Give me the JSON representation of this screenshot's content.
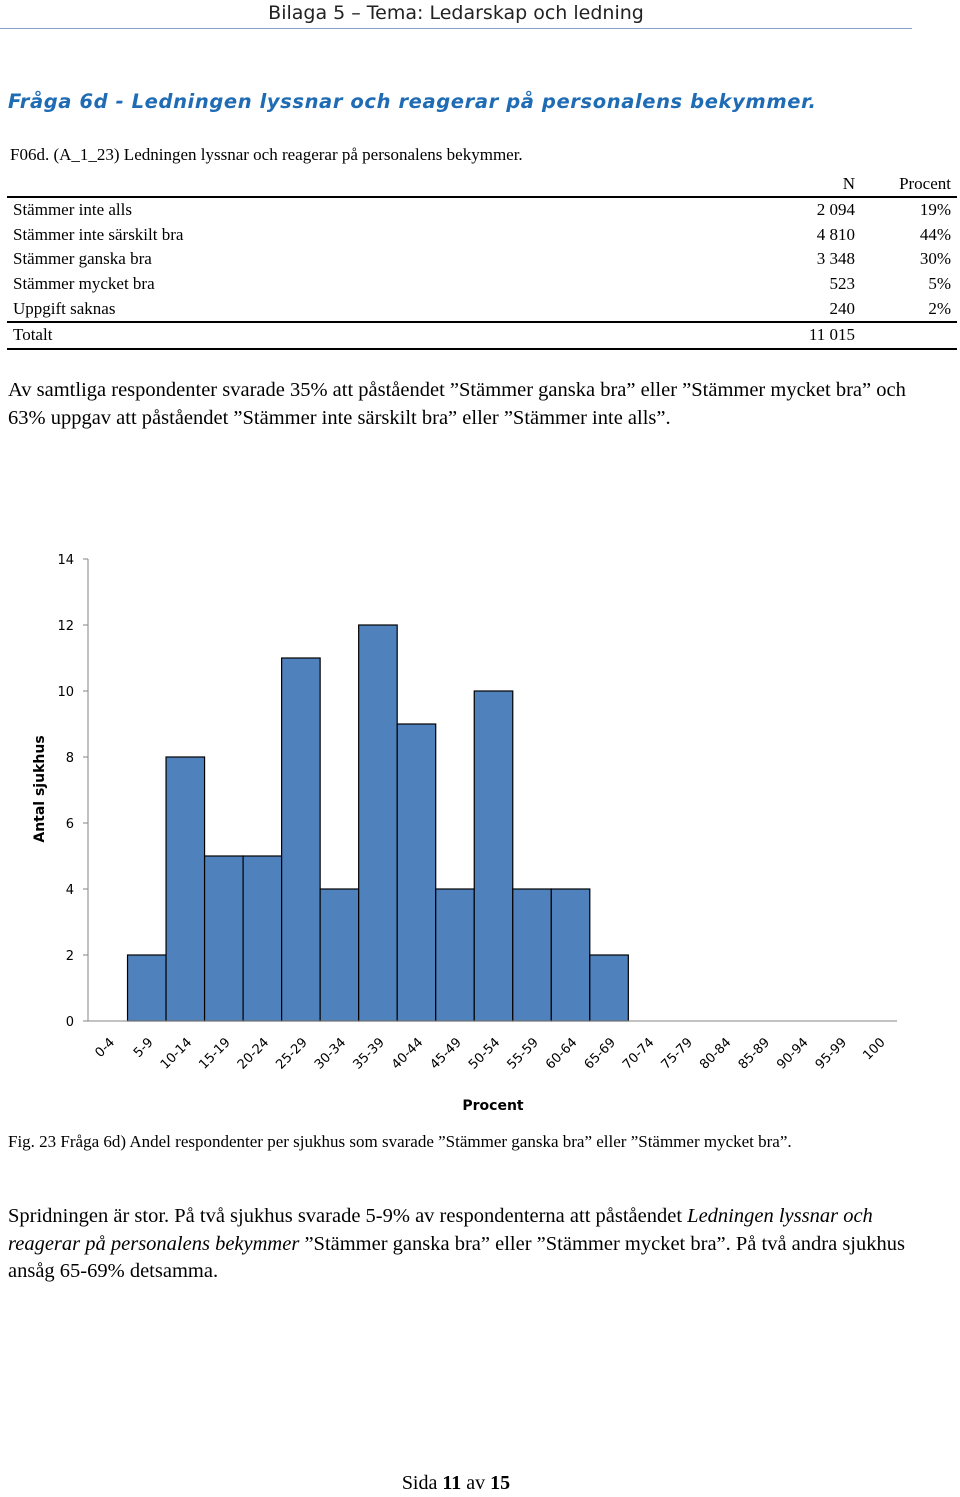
{
  "header": {
    "title": "Bilaga 5 – Tema: Ledarskap och ledning"
  },
  "section_heading": "Fråga 6d - Ledningen lyssnar och reagerar på personalens bekymmer.",
  "table": {
    "caption": "F06d. (A_1_23) Ledningen lyssnar och reagerar på personalens bekymmer.",
    "columns": [
      "",
      "N",
      "Procent"
    ],
    "rows": [
      {
        "label": "Stämmer inte alls",
        "n": "2 094",
        "percent": "19%"
      },
      {
        "label": "Stämmer inte särskilt bra",
        "n": "4 810",
        "percent": "44%"
      },
      {
        "label": "Stämmer ganska bra",
        "n": "3 348",
        "percent": "30%"
      },
      {
        "label": "Stämmer mycket bra",
        "n": "523",
        "percent": "5%"
      },
      {
        "label": "Uppgift saknas",
        "n": "240",
        "percent": "2%"
      }
    ],
    "total": {
      "label": "Totalt",
      "n": "11 015",
      "percent": ""
    }
  },
  "summary": "Av samtliga respondenter svarade 35% att påståendet ”Stämmer ganska bra” eller ”Stämmer mycket bra” och 63% uppgav att påståendet ”Stämmer inte särskilt bra” eller ”Stämmer inte alls”.",
  "chart_data": {
    "type": "bar",
    "title": "",
    "xlabel": "Procent",
    "ylabel": "Antal sjukhus",
    "ylim": [
      0,
      14
    ],
    "yticks": [
      0,
      2,
      4,
      6,
      8,
      10,
      12,
      14
    ],
    "categories": [
      "0-4",
      "5-9",
      "10-14",
      "15-19",
      "20-24",
      "25-29",
      "30-34",
      "35-39",
      "40-44",
      "45-49",
      "50-54",
      "55-59",
      "60-64",
      "65-69",
      "70-74",
      "75-79",
      "80-84",
      "85-89",
      "90-94",
      "95-99",
      "100"
    ],
    "values": [
      0,
      2,
      8,
      5,
      5,
      11,
      4,
      12,
      9,
      4,
      10,
      4,
      4,
      2,
      0,
      0,
      0,
      0,
      0,
      0,
      0
    ],
    "bar_color": "#4f81bd",
    "grid": false
  },
  "figure_caption": "Fig. 23 Fråga 6d) Andel respondenter per sjukhus som svarade ”Stämmer ganska bra” eller ”Stämmer mycket bra”.",
  "closing": {
    "part1": "Spridningen är stor. På två sjukhus svarade 5-9% av respondenterna att påståendet ",
    "italic": "Ledningen lyssnar och reagerar på personalens bekymmer",
    "part2": " ”Stämmer ganska bra” eller ”Stämmer mycket bra”. På två andra sjukhus ansåg 65-69% detsamma."
  },
  "footer": {
    "prefix": "Sida ",
    "page": "11",
    "middle": " av ",
    "total": "15"
  }
}
